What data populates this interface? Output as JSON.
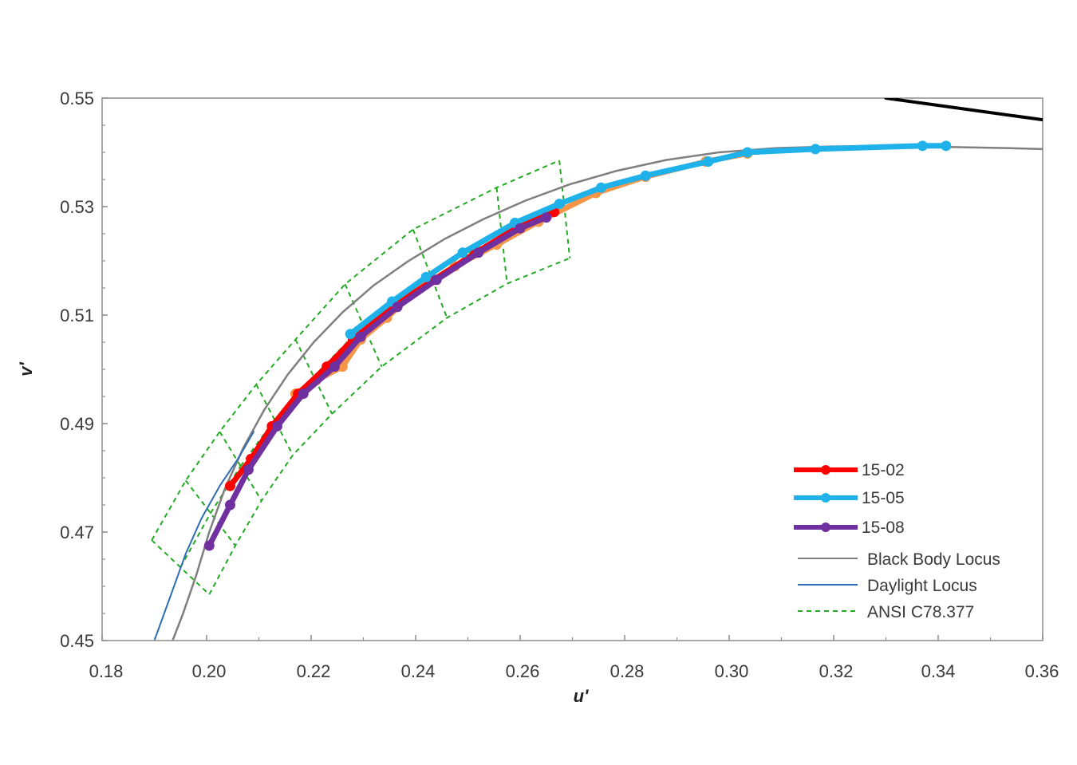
{
  "chart_data": {
    "type": "line",
    "title": "",
    "xlabel": "u'",
    "ylabel": "v'",
    "xlim": [
      0.18,
      0.36
    ],
    "ylim": [
      0.45,
      0.55
    ],
    "x_ticks": [
      "0.18",
      "0.20",
      "0.22",
      "0.24",
      "0.26",
      "0.28",
      "0.30",
      "0.32",
      "0.34",
      "0.36"
    ],
    "y_ticks": [
      "0.55",
      "0.53",
      "0.51",
      "0.49",
      "0.47",
      "0.45"
    ],
    "grid": false,
    "legend_position": "bottom-right",
    "series": [
      {
        "name": "Black Body Locus",
        "color": "#7f7f7f",
        "style": "line",
        "points": [
          [
            0.1935,
            0.45
          ],
          [
            0.1955,
            0.455
          ],
          [
            0.198,
            0.462
          ],
          [
            0.2005,
            0.47
          ],
          [
            0.2035,
            0.478
          ],
          [
            0.207,
            0.4855
          ],
          [
            0.211,
            0.4925
          ],
          [
            0.2155,
            0.499
          ],
          [
            0.2205,
            0.505
          ],
          [
            0.226,
            0.5105
          ],
          [
            0.232,
            0.5155
          ],
          [
            0.2385,
            0.5199
          ],
          [
            0.2455,
            0.524
          ],
          [
            0.253,
            0.5277
          ],
          [
            0.261,
            0.5311
          ],
          [
            0.2695,
            0.5341
          ],
          [
            0.2785,
            0.5366
          ],
          [
            0.288,
            0.5386
          ],
          [
            0.298,
            0.54
          ],
          [
            0.309,
            0.5408
          ],
          [
            0.32,
            0.5411
          ],
          [
            0.331,
            0.5411
          ],
          [
            0.342,
            0.541
          ],
          [
            0.353,
            0.5408
          ],
          [
            0.36,
            0.5406
          ]
        ]
      },
      {
        "name": "Daylight Locus",
        "color": "#2e6db4",
        "style": "line",
        "points": [
          [
            0.19,
            0.45
          ],
          [
            0.193,
            0.458
          ],
          [
            0.196,
            0.466
          ],
          [
            0.199,
            0.4725
          ],
          [
            0.2025,
            0.4785
          ],
          [
            0.206,
            0.4835
          ],
          [
            0.209,
            0.4885
          ]
        ]
      },
      {
        "name": "",
        "color": "#f79646",
        "style": "line-markers",
        "points": [
          [
            0.217,
            0.4955
          ],
          [
            0.221,
            0.498
          ],
          [
            0.226,
            0.5005
          ],
          [
            0.2295,
            0.5055
          ],
          [
            0.2345,
            0.5095
          ],
          [
            0.24,
            0.5145
          ],
          [
            0.2475,
            0.519
          ],
          [
            0.2555,
            0.523
          ],
          [
            0.2635,
            0.5272
          ],
          [
            0.2745,
            0.5325
          ],
          [
            0.284,
            0.5355
          ],
          [
            0.2955,
            0.5383
          ],
          [
            0.3035,
            0.5398
          ]
        ]
      },
      {
        "name": "15-02",
        "color": "#ff0000",
        "style": "line-markers",
        "points": [
          [
            0.2045,
            0.4785
          ],
          [
            0.2085,
            0.4835
          ],
          [
            0.2125,
            0.4895
          ],
          [
            0.2175,
            0.4955
          ],
          [
            0.223,
            0.5005
          ],
          [
            0.228,
            0.5055
          ],
          [
            0.2355,
            0.5115
          ],
          [
            0.2435,
            0.5165
          ],
          [
            0.2515,
            0.5215
          ],
          [
            0.2595,
            0.5262
          ],
          [
            0.2665,
            0.529
          ]
        ]
      },
      {
        "name": "15-05",
        "color": "#1fb2ea",
        "style": "line-markers",
        "points": [
          [
            0.2275,
            0.5065
          ],
          [
            0.2355,
            0.5125
          ],
          [
            0.242,
            0.517
          ],
          [
            0.249,
            0.5215
          ],
          [
            0.259,
            0.527
          ],
          [
            0.2675,
            0.5305
          ],
          [
            0.2755,
            0.5335
          ],
          [
            0.284,
            0.5357
          ],
          [
            0.296,
            0.5383
          ],
          [
            0.3035,
            0.54
          ],
          [
            0.3165,
            0.5406
          ],
          [
            0.337,
            0.5412
          ],
          [
            0.3415,
            0.5412
          ]
        ]
      },
      {
        "name": "15-08",
        "color": "#7030a0",
        "style": "line-markers",
        "points": [
          [
            0.2005,
            0.4675
          ],
          [
            0.2045,
            0.475
          ],
          [
            0.208,
            0.4815
          ],
          [
            0.2135,
            0.4895
          ],
          [
            0.2185,
            0.4955
          ],
          [
            0.2245,
            0.5005
          ],
          [
            0.2295,
            0.506
          ],
          [
            0.2365,
            0.5115
          ],
          [
            0.244,
            0.5165
          ],
          [
            0.252,
            0.5215
          ],
          [
            0.26,
            0.526
          ],
          [
            0.265,
            0.528
          ]
        ]
      },
      {
        "name": "",
        "color": "#000000",
        "style": "line",
        "points": [
          [
            0.33,
            0.55
          ],
          [
            0.345,
            0.548
          ],
          [
            0.36,
            0.546
          ]
        ]
      },
      {
        "name": "ANSI C78.377",
        "color": "#22aa22",
        "style": "dashed-grid",
        "outer_edge": [
          [
            0.1895,
            0.4685
          ],
          [
            0.196,
            0.4795
          ],
          [
            0.2025,
            0.4885
          ],
          [
            0.2095,
            0.4972
          ],
          [
            0.217,
            0.5055
          ],
          [
            0.2265,
            0.5157
          ],
          [
            0.2395,
            0.5258
          ],
          [
            0.2555,
            0.5335
          ],
          [
            0.2675,
            0.5385
          ]
        ],
        "inner_edge": [
          [
            0.2005,
            0.4585
          ],
          [
            0.2055,
            0.4675
          ],
          [
            0.2105,
            0.4758
          ],
          [
            0.2165,
            0.4842
          ],
          [
            0.224,
            0.4918
          ],
          [
            0.2335,
            0.5005
          ],
          [
            0.246,
            0.5095
          ],
          [
            0.2575,
            0.5158
          ],
          [
            0.2695,
            0.5205
          ]
        ]
      }
    ]
  }
}
